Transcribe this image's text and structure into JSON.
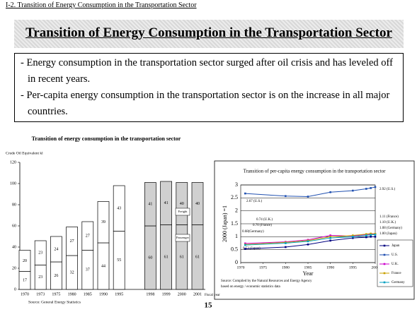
{
  "header": {
    "section": "I-2. Transition of Energy Consumption in the Transportation Sector",
    "title": "Transition of Energy Consumption in the Transportation Sector"
  },
  "bullets": [
    "Energy consumption in the transportation sector surged after oil crisis and has leveled off in recent years.",
    "Per-capita energy consumption in the transportation sector is on the increase in all major countries."
  ],
  "page_number": "15",
  "chart_data": [
    {
      "type": "bar",
      "title": "Transition of energy consumption in the transportation sector",
      "y_label": "Crude Oil Equivalent kl",
      "x_label": "Fiscal year",
      "source": "Source: General Energy Statistics",
      "categories": [
        "1970",
        "1973",
        "1975",
        "1980",
        "1985",
        "1990",
        "1995",
        "1998",
        "1999",
        "2000",
        "2001"
      ],
      "series": [
        {
          "name": "Passenger",
          "color": "#ffffff",
          "values": [
            17,
            23,
            26,
            32,
            37,
            44,
            55,
            60,
            61,
            61,
            61
          ]
        },
        {
          "name": "Freight",
          "color": "#ffffff",
          "values": [
            20,
            23,
            24,
            27,
            27,
            39,
            43,
            41,
            41,
            40,
            40
          ]
        }
      ],
      "ylim": [
        0,
        120
      ],
      "yticks": [
        0,
        20,
        40,
        60,
        80,
        100,
        120
      ],
      "grid": false
    },
    {
      "type": "line",
      "title": "Transition of per-capita energy consumption in the transportation sector",
      "y_label": "2000 (Japan) =1",
      "x_label": "Year",
      "source": [
        "Source: Compiled by the Natural Resources and Energy Agency",
        "based on energy / economic statistics data"
      ],
      "x": [
        1971,
        1980,
        1985,
        1990,
        1995,
        1998,
        1999,
        2000
      ],
      "series": [
        {
          "name": "Japan",
          "color": "#000080",
          "values": [
            0.53,
            0.6,
            0.7,
            0.85,
            0.95,
            0.98,
            1.0,
            1.0
          ]
        },
        {
          "name": "U.S.",
          "color": "#2050b0",
          "values": [
            2.67,
            2.57,
            2.55,
            2.72,
            2.78,
            2.85,
            2.88,
            2.92
          ]
        },
        {
          "name": "U.K.",
          "color": "#cc00cc",
          "values": [
            0.74,
            0.8,
            0.88,
            1.05,
            1.03,
            1.08,
            1.1,
            1.1
          ]
        },
        {
          "name": "France",
          "color": "#c8a000",
          "values": [
            0.7,
            0.78,
            0.85,
            1.0,
            1.05,
            1.1,
            1.12,
            1.11
          ]
        },
        {
          "name": "Germany",
          "color": "#00a0c0",
          "values": [
            0.68,
            0.75,
            0.82,
            0.95,
            1.0,
            1.05,
            1.07,
            1.08
          ]
        }
      ],
      "annotations": [
        "2.67 (U.S.)",
        "0.74 (U.K.)",
        "0.70 (France)",
        "0.68(Germany)",
        "0.53 (Japan)",
        "2.92 (U.S.)",
        "1.11 (France)",
        "1.10 (U.K.)",
        "1.08 (Germany)",
        "1.00 (Japan)"
      ],
      "xlim": [
        1970,
        2000
      ],
      "xticks": [
        1970,
        1975,
        1980,
        1985,
        1990,
        1995,
        2000
      ],
      "ylim": [
        0,
        3
      ],
      "yticks": [
        0,
        0.5,
        1,
        1.5,
        2,
        2.5,
        3
      ],
      "grid": true
    }
  ]
}
